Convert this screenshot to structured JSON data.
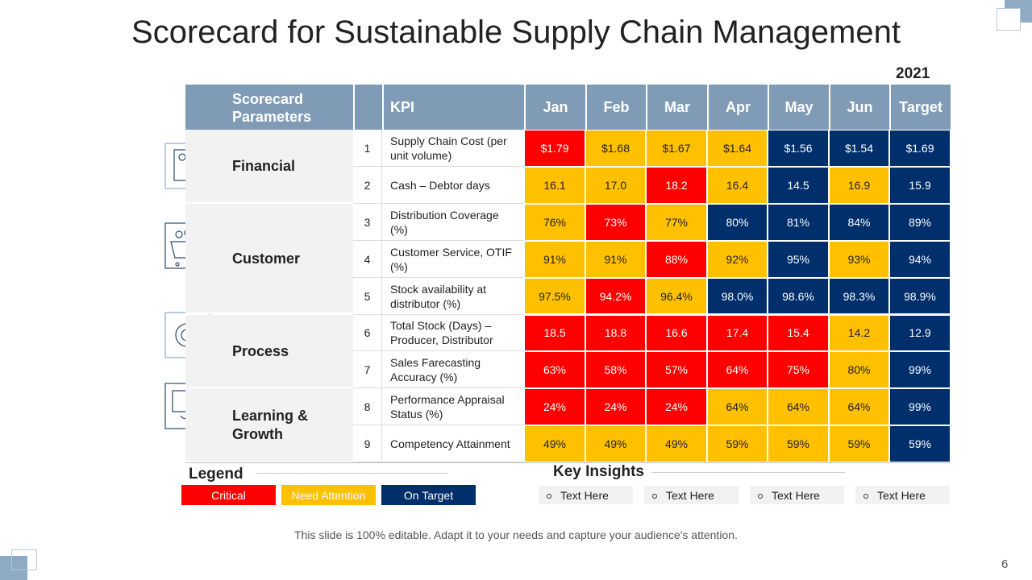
{
  "title": "Scorecard for Sustainable Supply Chain Management",
  "year": "2021",
  "header": {
    "parameters": "Scorecard Parameters",
    "kpi": "KPI",
    "columns": [
      "Jan",
      "Feb",
      "Mar",
      "Apr",
      "May",
      "Jun",
      "Target"
    ]
  },
  "groups": [
    {
      "name": "Financial",
      "rows": [
        {
          "no": "1",
          "kpi": "Supply Chain Cost (per unit volume)",
          "values": [
            "$1.79",
            "$1.68",
            "$1.67",
            "$1.64",
            "$1.56",
            "$1.54",
            "$1.69"
          ],
          "colors": [
            "#ff0000",
            "#ffc000",
            "#ffc000",
            "#ffc000",
            "#002f6c",
            "#002f6c",
            "#002f6c"
          ]
        },
        {
          "no": "2",
          "kpi": "Cash – Debtor days",
          "values": [
            "16.1",
            "17.0",
            "18.2",
            "16.4",
            "14.5",
            "16.9",
            "15.9"
          ],
          "colors": [
            "#ffc000",
            "#ffc000",
            "#ff0000",
            "#ffc000",
            "#002f6c",
            "#ffc000",
            "#002f6c"
          ]
        }
      ]
    },
    {
      "name": "Customer",
      "rows": [
        {
          "no": "3",
          "kpi": "Distribution Coverage (%)",
          "values": [
            "76%",
            "73%",
            "77%",
            "80%",
            "81%",
            "84%",
            "89%"
          ],
          "colors": [
            "#ffc000",
            "#ff0000",
            "#ffc000",
            "#002f6c",
            "#002f6c",
            "#002f6c",
            "#002f6c"
          ]
        },
        {
          "no": "4",
          "kpi": "Customer Service, OTIF (%)",
          "values": [
            "91%",
            "91%",
            "88%",
            "92%",
            "95%",
            "93%",
            "94%"
          ],
          "colors": [
            "#ffc000",
            "#ffc000",
            "#ff0000",
            "#ffc000",
            "#002f6c",
            "#ffc000",
            "#002f6c"
          ]
        },
        {
          "no": "5",
          "kpi": "Stock availability  at distributor (%)",
          "values": [
            "97.5%",
            "94.2%",
            "96.4%",
            "98.0%",
            "98.6%",
            "98.3%",
            "98.9%"
          ],
          "colors": [
            "#ffc000",
            "#ff0000",
            "#ffc000",
            "#002f6c",
            "#002f6c",
            "#002f6c",
            "#002f6c"
          ]
        }
      ]
    },
    {
      "name": "Process",
      "rows": [
        {
          "no": "6",
          "kpi": "Total Stock (Days) – Producer, Distributor",
          "values": [
            "18.5",
            "18.8",
            "16.6",
            "17.4",
            "15.4",
            "14.2",
            "12.9"
          ],
          "colors": [
            "#ff0000",
            "#ff0000",
            "#ff0000",
            "#ff0000",
            "#ff0000",
            "#ffc000",
            "#002f6c"
          ]
        },
        {
          "no": "7",
          "kpi": "Sales Farecasting Accuracy (%)",
          "values": [
            "63%",
            "58%",
            "57%",
            "64%",
            "75%",
            "80%",
            "99%"
          ],
          "colors": [
            "#ff0000",
            "#ff0000",
            "#ff0000",
            "#ff0000",
            "#ff0000",
            "#ffc000",
            "#002f6c"
          ]
        }
      ]
    },
    {
      "name": "Learning & Growth",
      "rows": [
        {
          "no": "8",
          "kpi": "Performance Appraisal Status (%)",
          "values": [
            "24%",
            "24%",
            "24%",
            "64%",
            "64%",
            "64%",
            "99%"
          ],
          "colors": [
            "#ff0000",
            "#ff0000",
            "#ff0000",
            "#ffc000",
            "#ffc000",
            "#ffc000",
            "#002f6c"
          ]
        },
        {
          "no": "9",
          "kpi": "Competency Attainment",
          "values": [
            "49%",
            "49%",
            "49%",
            "59%",
            "59%",
            "59%",
            "59%"
          ],
          "colors": [
            "#ffc000",
            "#ffc000",
            "#ffc000",
            "#ffc000",
            "#ffc000",
            "#ffc000",
            "#002f6c"
          ]
        }
      ]
    }
  ],
  "legend": {
    "title": "Legend",
    "items": [
      {
        "label": "Critical",
        "color": "#ff0000"
      },
      {
        "label": "Need Attention",
        "color": "#ffc000"
      },
      {
        "label": "On Target",
        "color": "#002f6c"
      }
    ]
  },
  "insights": {
    "title": "Key Insights",
    "items": [
      "Text Here",
      "Text Here",
      "Text Here",
      "Text Here"
    ]
  },
  "footer": "This slide is 100% editable. Adapt it to your needs and capture your audience's attention.",
  "page": "6"
}
